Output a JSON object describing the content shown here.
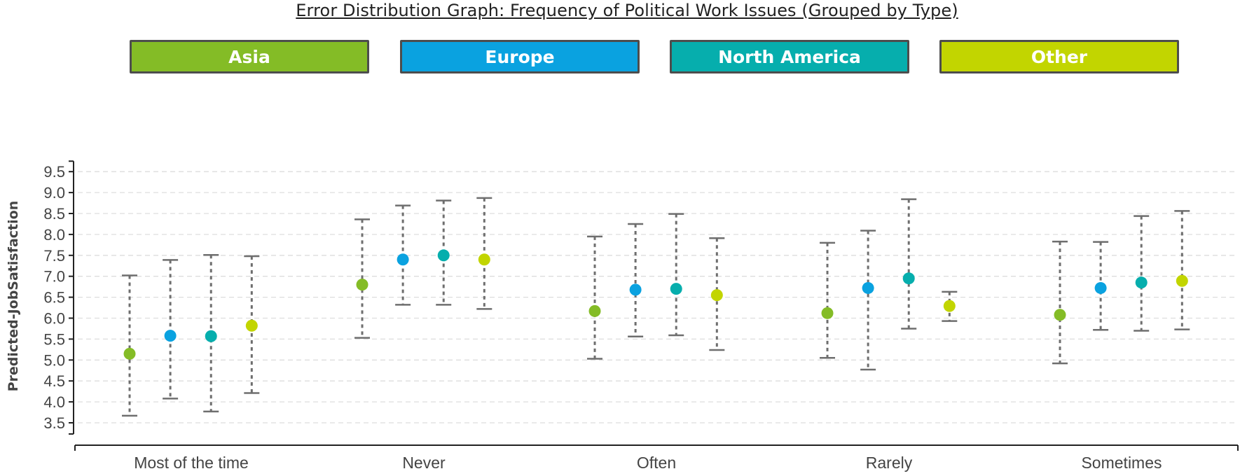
{
  "title": "Error Distribution Graph: Frequency of Political Work Issues (Grouped by Type)",
  "legend": [
    {
      "label": "Asia",
      "color": "#84bc26"
    },
    {
      "label": "Europe",
      "color": "#0aa2e0"
    },
    {
      "label": "North America",
      "color": "#06aead"
    },
    {
      "label": "Other",
      "color": "#c2d500"
    }
  ],
  "chart_data": {
    "type": "scatter",
    "title": "Error Distribution Graph: Frequency of Political Work Issues (Grouped by Type)",
    "xlabel": "",
    "ylabel": "Predicted-JobSatisfaction",
    "ylim": [
      3.3,
      9.75
    ],
    "yticks": [
      "3.5",
      "4.0",
      "4.5",
      "5.0",
      "5.5",
      "6.0",
      "6.5",
      "7.0",
      "7.5",
      "8.0",
      "8.5",
      "9.0",
      "9.5"
    ],
    "grid": true,
    "legend_position": "top",
    "categories": [
      "Most of the time",
      "Never",
      "Often",
      "Rarely",
      "Sometimes"
    ],
    "series": [
      {
        "name": "Asia",
        "color": "#84bc26",
        "values": [
          5.15,
          6.8,
          6.17,
          6.12,
          6.08
        ],
        "lower": [
          3.67,
          5.53,
          5.03,
          5.05,
          4.92
        ],
        "upper": [
          7.02,
          8.36,
          7.95,
          7.8,
          7.83
        ]
      },
      {
        "name": "Europe",
        "color": "#0aa2e0",
        "values": [
          5.58,
          7.4,
          6.68,
          6.72,
          6.72
        ],
        "lower": [
          4.08,
          6.32,
          5.56,
          4.77,
          5.72
        ],
        "upper": [
          7.39,
          8.69,
          8.25,
          8.09,
          7.82
        ]
      },
      {
        "name": "North America",
        "color": "#06aead",
        "values": [
          5.57,
          7.5,
          6.7,
          6.95,
          6.85
        ],
        "lower": [
          3.77,
          6.32,
          5.59,
          5.75,
          5.7
        ],
        "upper": [
          7.51,
          8.81,
          8.49,
          8.84,
          8.44
        ]
      },
      {
        "name": "Other",
        "color": "#c2d500",
        "values": [
          5.82,
          7.4,
          6.55,
          6.29,
          6.89
        ],
        "lower": [
          4.21,
          6.22,
          5.24,
          5.93,
          5.73
        ],
        "upper": [
          7.48,
          8.87,
          7.91,
          6.63,
          8.56
        ]
      }
    ]
  }
}
